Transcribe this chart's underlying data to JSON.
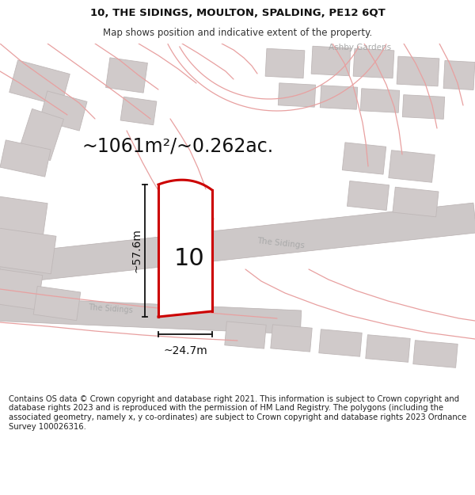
{
  "title": "10, THE SIDINGS, MOULTON, SPALDING, PE12 6QT",
  "subtitle": "Map shows position and indicative extent of the property.",
  "footer": "Contains OS data © Crown copyright and database right 2021. This information is subject to Crown copyright and database rights 2023 and is reproduced with the permission of HM Land Registry. The polygons (including the associated geometry, namely x, y co-ordinates) are subject to Crown copyright and database rights 2023 Ordnance Survey 100026316.",
  "area_label": "~1061m²/~0.262ac.",
  "width_label": "~24.7m",
  "height_label": "~57.6m",
  "plot_number": "10",
  "map_bg": "#ede8e8",
  "building_color": "#d0caca",
  "building_edge": "#bfb8b8",
  "highlight_color": "#cc0000",
  "highlight_fill": "#ffffff",
  "dim_line_color": "#111111",
  "road_fill": "#cdc8c8",
  "road_edge": "#b8b0b0",
  "road_line_color": "#e8a0a0",
  "street_label_color": "#aaaaaa",
  "ashby_label_color": "#aaaaaa",
  "title_fontsize": 9.5,
  "subtitle_fontsize": 8.5,
  "footer_fontsize": 7.2,
  "area_label_fontsize": 17,
  "dim_fontsize": 10,
  "plot_num_fontsize": 22,
  "street_fontsize": 7.5
}
